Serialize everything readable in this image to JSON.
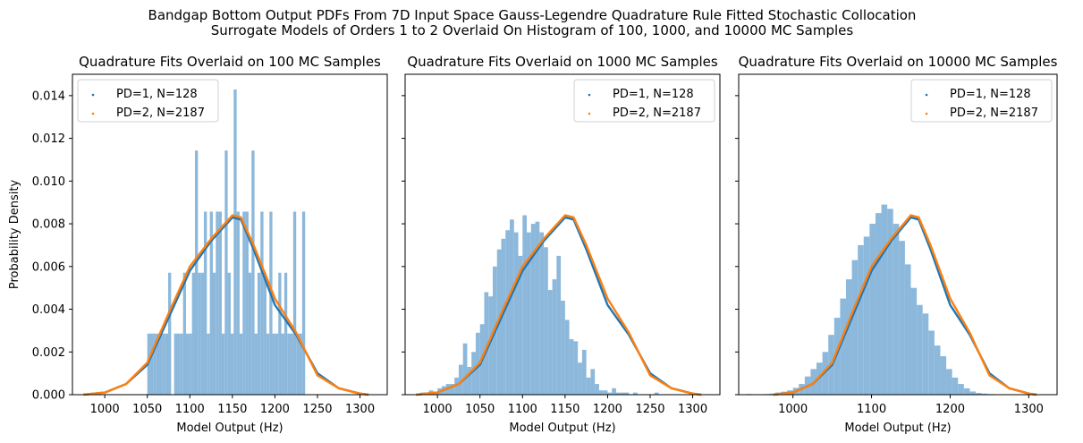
{
  "figure": {
    "suptitle_lines": [
      "Bandgap Bottom Output PDFs From 7D Input Space Gauss-Legendre Quadrature Rule Fitted Stochastic Collocation",
      "Surrogate Models of Orders 1 to 2 Overlaid On Histogram of 100, 1000, and 10000 MC Samples"
    ],
    "colors": {
      "histogram": "#8cb8db",
      "pd1": "#1f77b4",
      "pd2": "#ff7f0e"
    }
  },
  "chart_data": [
    {
      "type": "histogram_with_lines",
      "title": "Quadrature Fits Overlaid on 100 MC Samples",
      "xlabel": "Model Output (Hz)",
      "ylabel": "Probability Density",
      "xlim": [
        962,
        1332
      ],
      "ylim": [
        0,
        0.015
      ],
      "xticks": [
        1000,
        1050,
        1100,
        1150,
        1200,
        1250,
        1300
      ],
      "yticks": [
        "0.000",
        "0.002",
        "0.004",
        "0.006",
        "0.008",
        "0.010",
        "0.012",
        "0.014"
      ],
      "legend_position": "upper left",
      "histogram": {
        "bin_start": 1050,
        "bin_width": 3.5,
        "densities": [
          0.00286,
          0.00286,
          0.00286,
          0.00286,
          0.00286,
          0.00286,
          0.00286,
          0.00571,
          0,
          0.00286,
          0.00286,
          0.00286,
          0.00571,
          0.00286,
          0.00286,
          0.00571,
          0.01143,
          0.00571,
          0.00571,
          0.00857,
          0.00286,
          0.00857,
          0.00571,
          0.00857,
          0.00857,
          0.00286,
          0.01143,
          0.00571,
          0.00286,
          0.01429,
          0.00857,
          0.00286,
          0.00857,
          0.00857,
          0.00571,
          0.01143,
          0.00286,
          0.00571,
          0.00857,
          0.00571,
          0.00286,
          0.00857,
          0.00286,
          0.00286,
          0.00571,
          0.00286,
          0.00571,
          0.00286,
          0.00286,
          0.00857,
          0.00286,
          0.00286,
          0.00857
        ]
      },
      "series": [
        {
          "name": "PD=1, N=128",
          "x": [
            975,
            1000,
            1025,
            1050,
            1075,
            1100,
            1125,
            1150,
            1160,
            1175,
            1200,
            1225,
            1250,
            1275,
            1300,
            1310
          ],
          "y": [
            0,
            0.0001,
            0.0005,
            0.0014,
            0.0036,
            0.0058,
            0.0072,
            0.0083,
            0.0082,
            0.0068,
            0.0042,
            0.0028,
            0.001,
            0.0003,
            5e-05,
            0
          ]
        },
        {
          "name": "PD=2, N=2187",
          "x": [
            975,
            1000,
            1025,
            1050,
            1075,
            1100,
            1125,
            1150,
            1160,
            1175,
            1200,
            1225,
            1250,
            1275,
            1300,
            1310
          ],
          "y": [
            0,
            0.0001,
            0.0005,
            0.0015,
            0.0038,
            0.006,
            0.0073,
            0.0084,
            0.0083,
            0.007,
            0.0045,
            0.0029,
            0.0009,
            0.0003,
            5e-05,
            0
          ]
        }
      ]
    },
    {
      "type": "histogram_with_lines",
      "title": "Quadrature Fits Overlaid on 1000 MC Samples",
      "xlabel": "Model Output (Hz)",
      "ylabel": "",
      "xlim": [
        962,
        1332
      ],
      "ylim": [
        0,
        0.015
      ],
      "xticks": [
        1000,
        1050,
        1100,
        1150,
        1200,
        1250,
        1300
      ],
      "yticks": [],
      "legend_position": "upper right",
      "histogram": {
        "bin_start": 980,
        "bin_width": 5,
        "densities": [
          0.0001,
          0.0001,
          0.0002,
          0.0001,
          0.0003,
          0.0004,
          0.0005,
          0.0005,
          0.0008,
          0.0014,
          0.0024,
          0.0013,
          0.002,
          0.0029,
          0.0033,
          0.0048,
          0.0046,
          0.006,
          0.0068,
          0.0073,
          0.0077,
          0.0082,
          0.0076,
          0.0065,
          0.0084,
          0.0076,
          0.008,
          0.0081,
          0.0076,
          0.0069,
          0.0049,
          0.0054,
          0.0065,
          0.0044,
          0.0035,
          0.0026,
          0.0025,
          0.0015,
          0.0021,
          0.0008,
          0.0012,
          0.0005,
          0.0002,
          0.0002,
          0.0001,
          0.0003,
          0.0001,
          0.0001,
          0.0001,
          0.0,
          0.0001,
          0.0,
          0.0,
          0.0,
          0.0,
          0.0001
        ]
      },
      "series": [
        {
          "name": "PD=1, N=128",
          "x": [
            975,
            1000,
            1025,
            1050,
            1075,
            1100,
            1125,
            1150,
            1160,
            1175,
            1200,
            1225,
            1250,
            1275,
            1300,
            1310
          ],
          "y": [
            0,
            0.0001,
            0.0005,
            0.0014,
            0.0036,
            0.0058,
            0.0072,
            0.0083,
            0.0082,
            0.0068,
            0.0042,
            0.0028,
            0.001,
            0.0003,
            5e-05,
            0
          ]
        },
        {
          "name": "PD=2, N=2187",
          "x": [
            975,
            1000,
            1025,
            1050,
            1075,
            1100,
            1125,
            1150,
            1160,
            1175,
            1200,
            1225,
            1250,
            1275,
            1300,
            1310
          ],
          "y": [
            0,
            0.0001,
            0.0005,
            0.0015,
            0.0038,
            0.006,
            0.0073,
            0.0084,
            0.0083,
            0.007,
            0.0045,
            0.0029,
            0.0009,
            0.0003,
            5e-05,
            0
          ]
        }
      ]
    },
    {
      "type": "histogram_with_lines",
      "title": "Quadrature Fits Overlaid on 10000 MC Samples",
      "xlabel": "Model Output (Hz)",
      "ylabel": "",
      "xlim": [
        931,
        1336
      ],
      "ylim": [
        0,
        0.015
      ],
      "xticks": [
        1000,
        1100,
        1200,
        1300
      ],
      "yticks": [],
      "legend_position": "upper right",
      "histogram": {
        "bin_start": 940,
        "bin_width": 7.5,
        "densities": [
          3e-05,
          1e-05,
          2e-05,
          3e-05,
          5e-05,
          0.0001,
          0.00014,
          0.0002,
          0.00032,
          0.0005,
          0.00085,
          0.0012,
          0.0015,
          0.002,
          0.0028,
          0.0036,
          0.0045,
          0.0054,
          0.0063,
          0.007,
          0.0074,
          0.008,
          0.0085,
          0.0089,
          0.0087,
          0.008,
          0.0072,
          0.0061,
          0.005,
          0.0042,
          0.0038,
          0.003,
          0.0023,
          0.0018,
          0.0012,
          0.0008,
          0.0005,
          0.0003,
          0.00015,
          8e-05,
          5e-05,
          3e-05,
          2e-05,
          1e-05,
          1e-05,
          1e-05,
          1e-05,
          1e-05,
          1e-05,
          1e-05,
          1e-05,
          1e-05,
          1e-05
        ]
      },
      "series": [
        {
          "name": "PD=1, N=128",
          "x": [
            975,
            1000,
            1025,
            1050,
            1075,
            1100,
            1125,
            1150,
            1160,
            1175,
            1200,
            1225,
            1250,
            1275,
            1300,
            1310
          ],
          "y": [
            0,
            0.0001,
            0.0005,
            0.0014,
            0.0036,
            0.0058,
            0.0072,
            0.0083,
            0.0082,
            0.0068,
            0.0042,
            0.0028,
            0.001,
            0.0003,
            5e-05,
            0
          ]
        },
        {
          "name": "PD=2, N=2187",
          "x": [
            975,
            1000,
            1025,
            1050,
            1075,
            1100,
            1125,
            1150,
            1160,
            1175,
            1200,
            1225,
            1250,
            1275,
            1300,
            1310
          ],
          "y": [
            0,
            0.0001,
            0.0005,
            0.0015,
            0.0038,
            0.006,
            0.0073,
            0.0084,
            0.0083,
            0.007,
            0.0045,
            0.0029,
            0.0009,
            0.0003,
            5e-05,
            0
          ]
        }
      ]
    }
  ]
}
